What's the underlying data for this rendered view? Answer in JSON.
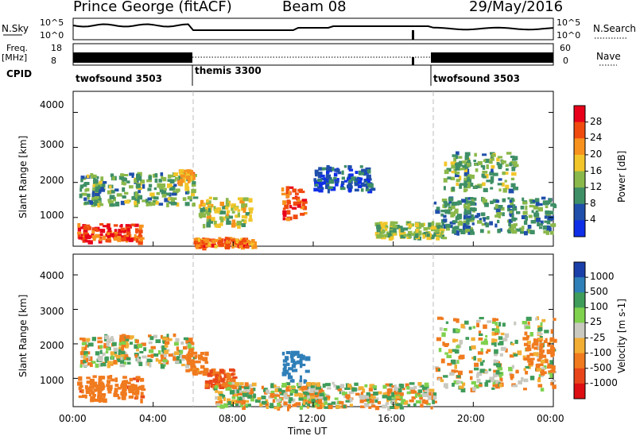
{
  "header": {
    "station": "Prince George (fitACF)",
    "beam": "Beam 08",
    "date": "29/May/2016"
  },
  "top_panels": {
    "nsky_label": "N.Sky",
    "nsky_ticks": [
      "10^5",
      "10^0"
    ],
    "nsearch_label": "N.Search",
    "freq_label": "Freq.",
    "freq_unit": "[MHz]",
    "freq_ticks": [
      "18",
      "8"
    ],
    "nave_label": "Nave",
    "nave_ticks": [
      "60",
      "0"
    ],
    "cpid_label": "CPID",
    "cpid_segments": [
      {
        "name": "twofsound 3503",
        "start_hour": 0,
        "end_hour": 6
      },
      {
        "name": "themis 3300",
        "start_hour": 6,
        "end_hour": 18
      },
      {
        "name": "twofsound 3503",
        "start_hour": 18,
        "end_hour": 24
      }
    ]
  },
  "x_axis": {
    "label": "Time UT",
    "ticks": [
      "00:00",
      "04:00",
      "08:00",
      "12:00",
      "16:00",
      "20:00",
      "00:00"
    ]
  },
  "power_panel": {
    "ylabel": "Slant Range [km]",
    "yticks": [
      "4000",
      "3000",
      "2000",
      "1000"
    ],
    "cbar_label": "Power [dB]",
    "cbar_ticks": [
      "28",
      "24",
      "20",
      "16",
      "12",
      "8",
      "4"
    ],
    "cbar_colors": [
      "#e8001a",
      "#f04a0f",
      "#f7921e",
      "#f2c62a",
      "#8bb84a",
      "#3f8f66",
      "#1f4faa",
      "#0f2ee8"
    ]
  },
  "velocity_panel": {
    "ylabel": "Slant Range [km]",
    "yticks": [
      "4000",
      "3000",
      "2000",
      "1000"
    ],
    "cbar_label": "Velocity [m s-1]",
    "cbar_ticks": [
      "1000",
      "500",
      "100",
      "25",
      "-25",
      "-100",
      "-500",
      "-1000"
    ],
    "cbar_colors": [
      "#1b3fa8",
      "#2f7fb8",
      "#3f9c5a",
      "#7fd14e",
      "#c9c9c0",
      "#f2ae33",
      "#f07a1e",
      "#e8461a",
      "#dd0f12"
    ]
  },
  "chart_data": [
    {
      "type": "heatmap",
      "title": "Power",
      "xlabel": "Time UT",
      "ylabel": "Slant Range [km]",
      "xlim": [
        0,
        24
      ],
      "ylim": [
        180,
        4600
      ],
      "colorbar": {
        "label": "Power [dB]",
        "range": [
          0,
          32
        ]
      },
      "scatter_regions": [
        {
          "t0": 0.2,
          "t1": 3.4,
          "r0": 350,
          "r1": 850,
          "power": 28
        },
        {
          "t0": 0.3,
          "t1": 6.0,
          "r0": 1400,
          "r1": 2300,
          "power": 14
        },
        {
          "t0": 5.2,
          "t1": 5.9,
          "r0": 2000,
          "r1": 2400,
          "power": 22
        },
        {
          "t0": 6.0,
          "t1": 9.0,
          "r0": 180,
          "r1": 450,
          "power": 26
        },
        {
          "t0": 6.2,
          "t1": 8.8,
          "r0": 800,
          "r1": 1600,
          "power": 18
        },
        {
          "t0": 10.4,
          "t1": 11.6,
          "r0": 950,
          "r1": 1900,
          "power": 28
        },
        {
          "t0": 12.0,
          "t1": 15.0,
          "r0": 1800,
          "r1": 2500,
          "power": 8
        },
        {
          "t0": 15.0,
          "t1": 18.5,
          "r0": 450,
          "r1": 900,
          "power": 16
        },
        {
          "t0": 18.0,
          "t1": 24.0,
          "r0": 600,
          "r1": 1600,
          "power": 12
        },
        {
          "t0": 18.5,
          "t1": 22.0,
          "r0": 1800,
          "r1": 2900,
          "power": 14
        }
      ]
    },
    {
      "type": "heatmap",
      "title": "Velocity",
      "xlabel": "Time UT",
      "ylabel": "Slant Range [km]",
      "xlim": [
        0,
        24
      ],
      "ylim": [
        180,
        4600
      ],
      "colorbar": {
        "label": "Velocity [m s-1]",
        "range": [
          -1000,
          1000
        ]
      },
      "scatter_regions": [
        {
          "t0": 0.2,
          "t1": 3.4,
          "r0": 400,
          "r1": 1100,
          "velocity": -200
        },
        {
          "t0": 0.3,
          "t1": 6.0,
          "r0": 1400,
          "r1": 2300,
          "velocity": 0
        },
        {
          "t0": 5.6,
          "t1": 6.6,
          "r0": 1200,
          "r1": 1800,
          "velocity": -150
        },
        {
          "t0": 6.5,
          "t1": 8.0,
          "r0": 800,
          "r1": 1300,
          "velocity": -300
        },
        {
          "t0": 10.4,
          "t1": 11.6,
          "r0": 950,
          "r1": 1800,
          "velocity": 450
        },
        {
          "t0": 7.0,
          "t1": 18.0,
          "r0": 180,
          "r1": 900,
          "velocity": 0
        },
        {
          "t0": 18.0,
          "t1": 24.0,
          "r0": 700,
          "r1": 2800,
          "velocity": 0
        },
        {
          "t0": 22.5,
          "t1": 24.0,
          "r0": 1200,
          "r1": 2200,
          "velocity": -150
        }
      ]
    }
  ]
}
